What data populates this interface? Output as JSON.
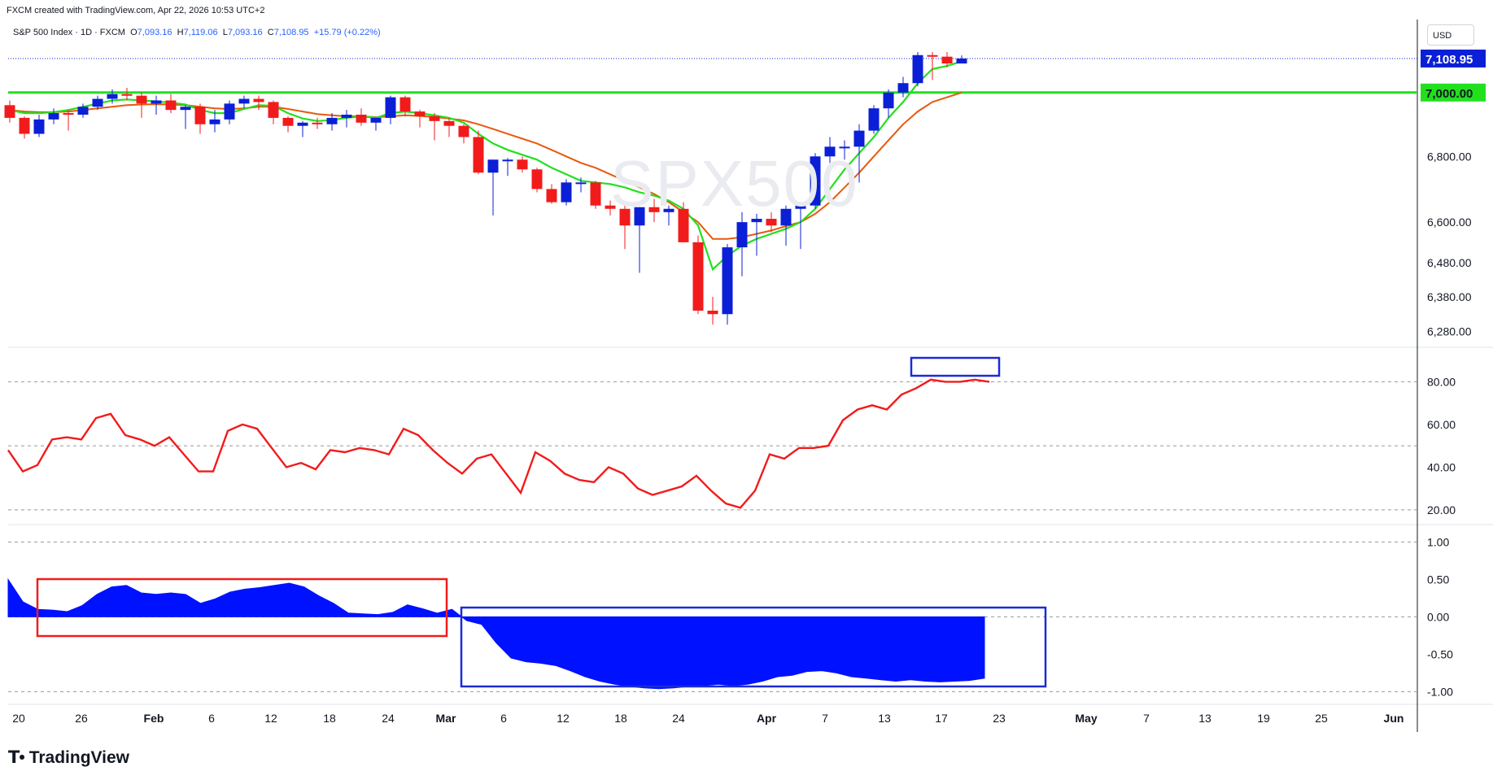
{
  "header": {
    "credit": "FXCM created with TradingView.com, Apr 22, 2026 10:53 UTC+2"
  },
  "legend": {
    "symbol": "S&P 500 Index · 1D · FXCM",
    "open_label": "O",
    "open": "7,093.16",
    "high_label": "H",
    "high": "7,119.06",
    "low_label": "L",
    "low": "7,093.16",
    "close_label": "C",
    "close": "7,108.95",
    "change": "+15.79 (+0.22%)"
  },
  "watermark": "SPX500",
  "currency_button": "USD",
  "brand": "TradingView",
  "colors": {
    "up": "#0b1fd6",
    "down": "#f21b1b",
    "ma_fast": "#22e01e",
    "ma_slow": "#e8590c",
    "level_line": "#22e01e",
    "rsi": "#f21b1b",
    "area": "#0011ff",
    "box_red": "#f21b1b",
    "box_blue": "#1b2bd6",
    "price_tag_bg": "#0b1fd6",
    "level_tag_bg": "#22e01e"
  },
  "chart_data": [
    {
      "type": "candlestick",
      "pane": "price",
      "x_axis_labels": [
        "20",
        "26",
        "Feb",
        "6",
        "12",
        "18",
        "24",
        "Mar",
        "6",
        "12",
        "18",
        "24",
        "Apr",
        "7",
        "13",
        "17",
        "23",
        "May",
        "7",
        "13",
        "19",
        "25",
        "Jun"
      ],
      "y_axis_labels": [
        "6,280.00",
        "6,380.00",
        "6,480.00",
        "6,600.00",
        "6,800.00"
      ],
      "y_scale": "log",
      "ylim": [
        6240,
        7220
      ],
      "current_price_tag": "7,108.95",
      "level_tag": "7,000.00",
      "horizontal_level": 7000,
      "candles": [
        [
          6960,
          6975,
          6905,
          6920
        ],
        [
          6920,
          6925,
          6855,
          6870
        ],
        [
          6870,
          6930,
          6860,
          6915
        ],
        [
          6915,
          6950,
          6900,
          6935
        ],
        [
          6935,
          6945,
          6880,
          6930
        ],
        [
          6930,
          6965,
          6920,
          6955
        ],
        [
          6955,
          6990,
          6945,
          6980
        ],
        [
          6980,
          7010,
          6965,
          6995
        ],
        [
          6995,
          7015,
          6975,
          6990
        ],
        [
          6990,
          7000,
          6920,
          6965
        ],
        [
          6965,
          6990,
          6930,
          6975
        ],
        [
          6975,
          6995,
          6935,
          6945
        ],
        [
          6945,
          6960,
          6885,
          6955
        ],
        [
          6955,
          6965,
          6870,
          6900
        ],
        [
          6900,
          6945,
          6875,
          6915
        ],
        [
          6915,
          6975,
          6900,
          6965
        ],
        [
          6965,
          6990,
          6950,
          6980
        ],
        [
          6980,
          6990,
          6945,
          6970
        ],
        [
          6970,
          6975,
          6900,
          6920
        ],
        [
          6920,
          6925,
          6875,
          6895
        ],
        [
          6895,
          6910,
          6860,
          6905
        ],
        [
          6905,
          6920,
          6885,
          6900
        ],
        [
          6900,
          6935,
          6880,
          6920
        ],
        [
          6920,
          6945,
          6890,
          6930
        ],
        [
          6930,
          6950,
          6895,
          6905
        ],
        [
          6905,
          6920,
          6880,
          6920
        ],
        [
          6920,
          6990,
          6900,
          6985
        ],
        [
          6985,
          6990,
          6925,
          6940
        ],
        [
          6940,
          6945,
          6890,
          6925
        ],
        [
          6925,
          6935,
          6850,
          6910
        ],
        [
          6910,
          6920,
          6860,
          6895
        ],
        [
          6895,
          6900,
          6840,
          6860
        ],
        [
          6860,
          6880,
          6745,
          6750
        ],
        [
          6750,
          6790,
          6620,
          6790
        ],
        [
          6790,
          6795,
          6740,
          6790
        ],
        [
          6790,
          6800,
          6750,
          6760
        ],
        [
          6760,
          6765,
          6690,
          6700
        ],
        [
          6700,
          6715,
          6655,
          6660
        ],
        [
          6660,
          6730,
          6650,
          6720
        ],
        [
          6720,
          6735,
          6690,
          6720
        ],
        [
          6720,
          6725,
          6640,
          6650
        ],
        [
          6650,
          6665,
          6620,
          6640
        ],
        [
          6640,
          6655,
          6520,
          6590
        ],
        [
          6590,
          6645,
          6450,
          6645
        ],
        [
          6645,
          6670,
          6600,
          6630
        ],
        [
          6630,
          6650,
          6590,
          6640
        ],
        [
          6640,
          6660,
          6540,
          6540
        ],
        [
          6540,
          6560,
          6330,
          6340
        ],
        [
          6340,
          6380,
          6300,
          6330
        ],
        [
          6330,
          6535,
          6300,
          6525
        ],
        [
          6525,
          6630,
          6440,
          6600
        ],
        [
          6600,
          6625,
          6500,
          6610
        ],
        [
          6610,
          6630,
          6570,
          6590
        ],
        [
          6590,
          6650,
          6530,
          6640
        ],
        [
          6640,
          6660,
          6520,
          6650
        ],
        [
          6650,
          6810,
          6640,
          6800
        ],
        [
          6800,
          6860,
          6780,
          6830
        ],
        [
          6830,
          6850,
          6790,
          6830
        ],
        [
          6830,
          6900,
          6720,
          6880
        ],
        [
          6880,
          6960,
          6870,
          6950
        ],
        [
          6950,
          7010,
          6920,
          7000
        ],
        [
          7000,
          7050,
          6985,
          7030
        ],
        [
          7030,
          7130,
          7020,
          7120
        ],
        [
          7120,
          7130,
          7040,
          7115
        ],
        [
          7115,
          7130,
          7080,
          7093
        ],
        [
          7093,
          7119,
          7093,
          7109
        ]
      ],
      "ma_fast": [
        6945,
        6935,
        6935,
        6938,
        6945,
        6955,
        6965,
        6975,
        6978,
        6975,
        6972,
        6968,
        6962,
        6945,
        6935,
        6935,
        6948,
        6960,
        6958,
        6935,
        6918,
        6910,
        6913,
        6920,
        6925,
        6920,
        6935,
        6940,
        6935,
        6928,
        6920,
        6905,
        6870,
        6840,
        6820,
        6805,
        6790,
        6765,
        6745,
        6725,
        6720,
        6715,
        6705,
        6690,
        6680,
        6665,
        6640,
        6590,
        6460,
        6500,
        6530,
        6550,
        6565,
        6580,
        6600,
        6640,
        6700,
        6760,
        6810,
        6860,
        6920,
        6970,
        7030,
        7075,
        7085,
        7100
      ],
      "ma_slow": [
        6945,
        6940,
        6938,
        6938,
        6940,
        6945,
        6950,
        6955,
        6960,
        6962,
        6963,
        6962,
        6960,
        6955,
        6950,
        6948,
        6950,
        6955,
        6955,
        6948,
        6940,
        6932,
        6928,
        6925,
        6925,
        6922,
        6925,
        6928,
        6926,
        6923,
        6918,
        6912,
        6900,
        6885,
        6870,
        6855,
        6840,
        6820,
        6800,
        6780,
        6765,
        6745,
        6725,
        6705,
        6685,
        6660,
        6630,
        6600,
        6550,
        6550,
        6555,
        6565,
        6575,
        6588,
        6600,
        6625,
        6660,
        6705,
        6750,
        6800,
        6850,
        6900,
        6940,
        6970,
        6985,
        7000
      ]
    },
    {
      "type": "line",
      "pane": "oscillator",
      "name": "",
      "y_axis_labels": [
        "20.00",
        "40.00",
        "60.00",
        "80.00"
      ],
      "ylim": [
        15,
        95
      ],
      "reference_lines": [
        20,
        50,
        80
      ],
      "values": [
        48,
        38,
        41,
        53,
        54,
        53,
        63,
        65,
        55,
        53,
        50,
        54,
        46,
        38,
        38,
        57,
        60,
        58,
        49,
        40,
        42,
        39,
        48,
        47,
        49,
        48,
        46,
        58,
        55,
        48,
        42,
        37,
        44,
        46,
        37,
        28,
        47,
        43,
        37,
        34,
        33,
        40,
        37,
        30,
        27,
        29,
        31,
        36,
        29,
        23,
        21,
        29,
        46,
        44,
        49,
        49,
        50,
        62,
        67,
        69,
        67,
        74,
        77,
        81,
        80,
        80,
        81,
        80
      ]
    },
    {
      "type": "area",
      "pane": "lower",
      "name": "",
      "y_axis_labels": [
        "-1.00",
        "-0.50",
        "0.00",
        "0.50",
        "1.00"
      ],
      "ylim": [
        -1.05,
        1.2
      ],
      "reference_lines": [
        -1,
        0,
        1
      ],
      "values": [
        0.5,
        0.2,
        0.1,
        0.09,
        0.07,
        0.15,
        0.3,
        0.4,
        0.42,
        0.32,
        0.3,
        0.32,
        0.3,
        0.18,
        0.24,
        0.33,
        0.37,
        0.39,
        0.42,
        0.45,
        0.4,
        0.28,
        0.18,
        0.05,
        0.04,
        0.03,
        0.06,
        0.16,
        0.11,
        0.05,
        0.1,
        -0.05,
        -0.1,
        -0.35,
        -0.55,
        -0.6,
        -0.62,
        -0.65,
        -0.72,
        -0.8,
        -0.86,
        -0.9,
        -0.93,
        -0.95,
        -0.96,
        -0.95,
        -0.93,
        -0.92,
        -0.9,
        -0.92,
        -0.9,
        -0.86,
        -0.8,
        -0.78,
        -0.73,
        -0.72,
        -0.75,
        -0.8,
        -0.82,
        -0.84,
        -0.86,
        -0.84,
        -0.86,
        -0.87,
        -0.86,
        -0.85,
        -0.82
      ]
    }
  ]
}
